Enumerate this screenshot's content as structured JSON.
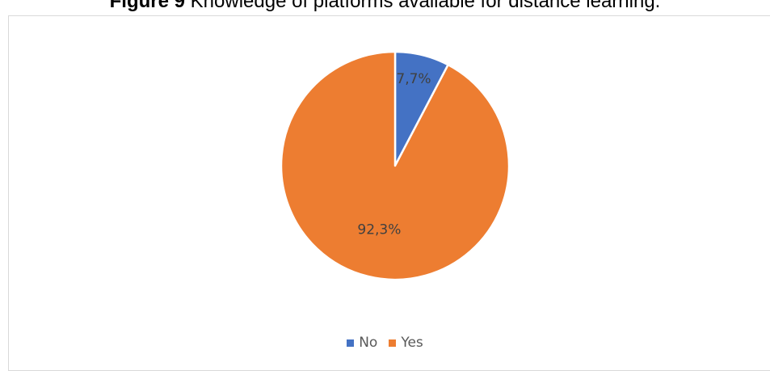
{
  "caption": {
    "prefix": "Figure 9 ",
    "title": "Knowledge of platforms available for distance learning."
  },
  "chart_data": {
    "type": "pie",
    "title": "",
    "slices": [
      {
        "label": "No",
        "value": 7.7,
        "display": "7,7%",
        "color": "#4472c4"
      },
      {
        "label": "Yes",
        "value": 92.3,
        "display": "92,3%",
        "color": "#ed7d31"
      }
    ],
    "legend_position": "bottom",
    "start_angle": "12 o'clock",
    "direction": "clockwise"
  }
}
